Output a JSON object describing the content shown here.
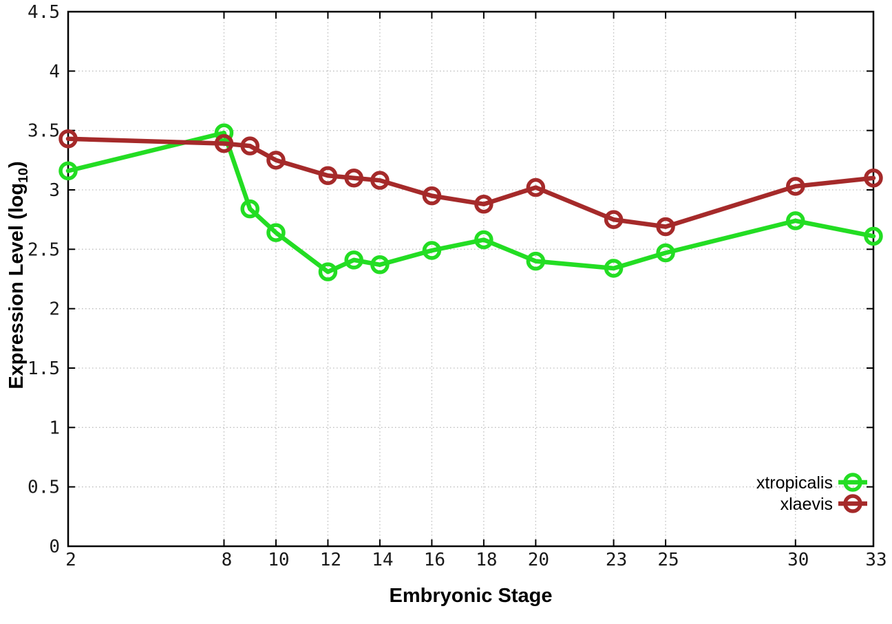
{
  "chart_data": {
    "type": "line",
    "title": "",
    "xlabel": "Embryonic Stage",
    "ylabel": "Expression Level (log10)",
    "ylabel_parts": {
      "prefix": "Expression Level (log",
      "sub": "10",
      "suffix": ")"
    },
    "xlim": [
      2,
      33
    ],
    "ylim": [
      0,
      4.5
    ],
    "grid": true,
    "grid_style": "dotted",
    "grid_color": "#bdbdbd",
    "axis_color": "#000000",
    "legend_position": "bottom-right",
    "x_ticks": [
      {
        "v": 2,
        "label": "2"
      },
      {
        "v": 8,
        "label": "8"
      },
      {
        "v": 10,
        "label": "10"
      },
      {
        "v": 12,
        "label": "12"
      },
      {
        "v": 14,
        "label": "14"
      },
      {
        "v": 16,
        "label": "16"
      },
      {
        "v": 18,
        "label": "18"
      },
      {
        "v": 20,
        "label": "20"
      },
      {
        "v": 23,
        "label": "23"
      },
      {
        "v": 25,
        "label": "25"
      },
      {
        "v": 30,
        "label": "30"
      },
      {
        "v": 33,
        "label": "33"
      }
    ],
    "y_ticks": [
      {
        "v": 0,
        "label": "0"
      },
      {
        "v": 0.5,
        "label": "0.5"
      },
      {
        "v": 1,
        "label": "1"
      },
      {
        "v": 1.5,
        "label": "1.5"
      },
      {
        "v": 2,
        "label": "2"
      },
      {
        "v": 2.5,
        "label": "2.5"
      },
      {
        "v": 3,
        "label": "3"
      },
      {
        "v": 3.5,
        "label": "3.5"
      },
      {
        "v": 4,
        "label": "4"
      },
      {
        "v": 4.5,
        "label": "4.5"
      }
    ],
    "x": [
      2,
      8,
      9,
      10,
      12,
      13,
      14,
      16,
      18,
      20,
      23,
      25,
      30,
      33
    ],
    "series": [
      {
        "name": "xtropicalis",
        "color": "#23dd23",
        "marker": "open-circle",
        "values": [
          3.16,
          3.48,
          2.84,
          2.64,
          2.31,
          2.41,
          2.37,
          2.49,
          2.58,
          2.4,
          2.34,
          2.47,
          2.74,
          2.61
        ]
      },
      {
        "name": "xlaevis",
        "color": "#a52a2a",
        "marker": "open-circle",
        "values": [
          3.43,
          3.39,
          3.37,
          3.25,
          3.12,
          3.1,
          3.08,
          2.95,
          2.88,
          3.02,
          2.75,
          2.69,
          3.03,
          3.1
        ]
      }
    ]
  }
}
